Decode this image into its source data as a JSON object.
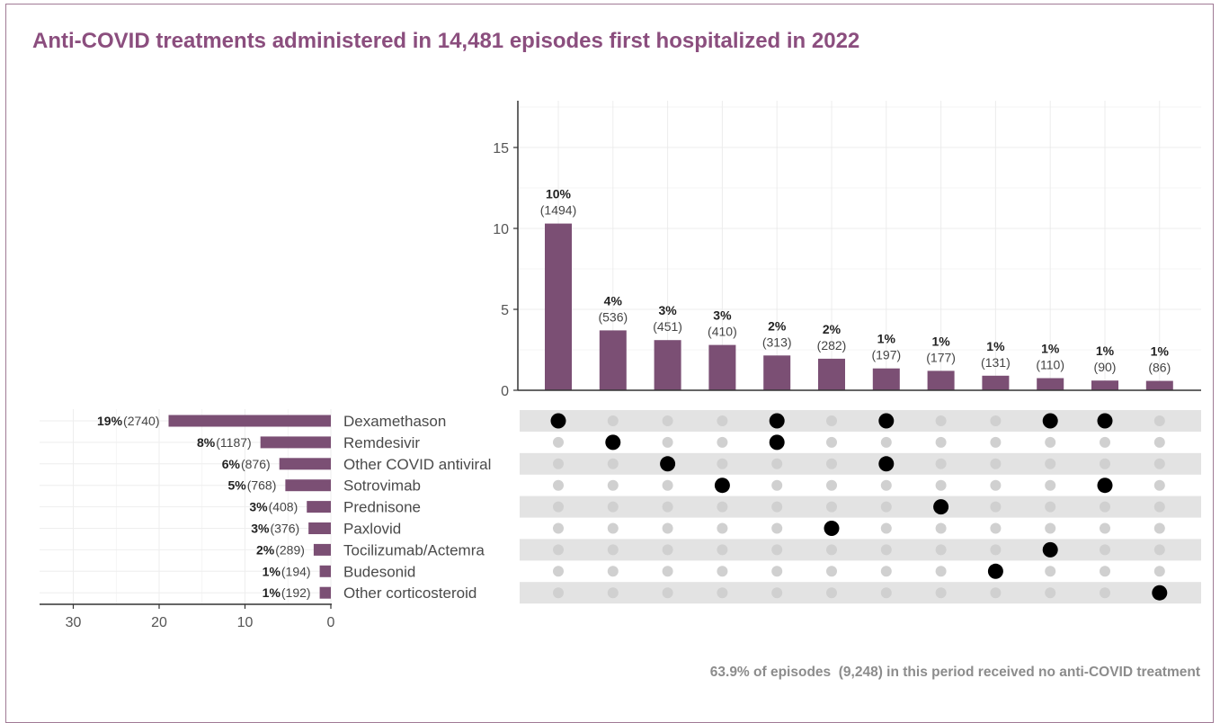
{
  "title": "Anti-COVID treatments administered in 14,481 episodes first hospitalized in 2022",
  "footnote": "63.9% of episodes  (9,248) in this period received no anti-COVID treatment",
  "colors": {
    "bar": "#7b4f74",
    "title": "#8b4e7e",
    "dot_on": "#000000",
    "dot_off": "#d0d0d0",
    "stripe": "#e3e3e3"
  },
  "chart_data": [
    {
      "type": "bar",
      "part": "intersections",
      "ylim": [
        0,
        18
      ],
      "yticks": [
        0,
        5,
        10,
        15
      ],
      "values": [
        10.3,
        3.7,
        3.1,
        2.8,
        2.15,
        1.95,
        1.35,
        1.2,
        0.9,
        0.75,
        0.6,
        0.58
      ],
      "pct_labels": [
        "10%",
        "4%",
        "3%",
        "3%",
        "2%",
        "2%",
        "1%",
        "1%",
        "1%",
        "1%",
        "1%",
        "1%"
      ],
      "count_labels": [
        "(1494)",
        "(536)",
        "(451)",
        "(410)",
        "(313)",
        "(282)",
        "(197)",
        "(177)",
        "(131)",
        "(110)",
        "(90)",
        "(86)"
      ],
      "grid": true
    },
    {
      "type": "bar",
      "part": "set-sizes",
      "orientation": "horizontal",
      "xlim": [
        34,
        0
      ],
      "xticks": [
        30,
        20,
        10,
        0
      ],
      "sets": [
        "Dexamethason",
        "Remdesivir",
        "Other COVID antiviral",
        "Sotrovimab",
        "Prednisone",
        "Paxlovid",
        "Tocilizumab/Actemra",
        "Budesonid",
        "Other corticosteroid"
      ],
      "values": [
        18.9,
        8.2,
        6.0,
        5.3,
        2.8,
        2.6,
        2.0,
        1.3,
        1.3
      ],
      "pct_labels": [
        "19%",
        "8%",
        "6%",
        "5%",
        "3%",
        "3%",
        "2%",
        "1%",
        "1%"
      ],
      "count_labels": [
        "(2740)",
        "(1187)",
        "(876)",
        "(768)",
        "(408)",
        "(376)",
        "(289)",
        "(194)",
        "(192)"
      ],
      "grid": true
    },
    {
      "type": "matrix",
      "part": "membership",
      "membership": [
        [
          0
        ],
        [
          1
        ],
        [
          2
        ],
        [
          3
        ],
        [
          0,
          1
        ],
        [
          5
        ],
        [
          0,
          2
        ],
        [
          4
        ],
        [
          7
        ],
        [
          0,
          6
        ],
        [
          0,
          3
        ],
        [
          8
        ]
      ]
    }
  ]
}
